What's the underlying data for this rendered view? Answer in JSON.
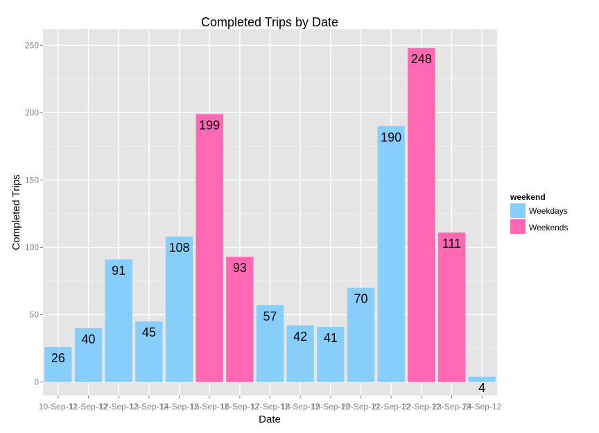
{
  "chart_data": {
    "type": "bar",
    "title": "Completed Trips by Date",
    "xlabel": "Date",
    "ylabel": "Completed Trips",
    "ylim": [
      -10,
      262
    ],
    "yticks": [
      0,
      50,
      100,
      150,
      200,
      250
    ],
    "grid": true,
    "legend_position": "right",
    "legend": {
      "title": "weekend",
      "entries": [
        {
          "label": "Weekdays",
          "color": "#87CEFA"
        },
        {
          "label": "Weekends",
          "color": "#FF69B4"
        }
      ]
    },
    "categories": [
      "10-Sep-12",
      "11-Sep-12",
      "12-Sep-12",
      "13-Sep-12",
      "14-Sep-12",
      "15-Sep-12",
      "16-Sep-12",
      "17-Sep-12",
      "18-Sep-12",
      "19-Sep-12",
      "20-Sep-12",
      "21-Sep-12",
      "22-Sep-12",
      "23-Sep-12",
      "24-Sep-12"
    ],
    "values": [
      26,
      40,
      91,
      45,
      108,
      199,
      93,
      57,
      42,
      41,
      70,
      190,
      248,
      111,
      4
    ],
    "groups": [
      "Weekdays",
      "Weekdays",
      "Weekdays",
      "Weekdays",
      "Weekdays",
      "Weekends",
      "Weekends",
      "Weekdays",
      "Weekdays",
      "Weekdays",
      "Weekdays",
      "Weekdays",
      "Weekends",
      "Weekends",
      "Weekdays"
    ]
  }
}
